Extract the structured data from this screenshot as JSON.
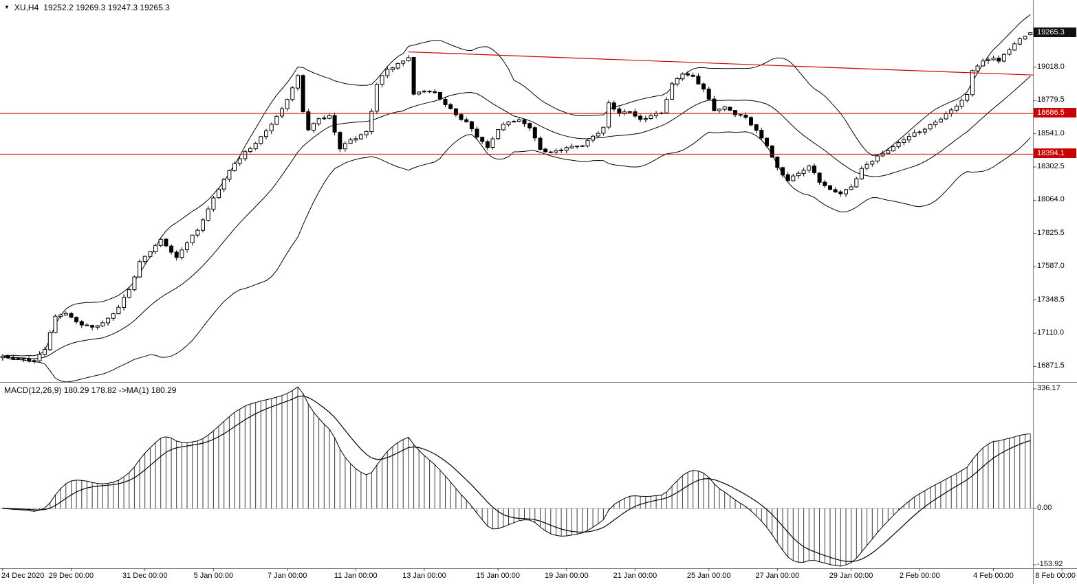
{
  "header": {
    "collapse_icon": "▼",
    "symbol_period": "XU,H4",
    "ohlc_text": "19252.2 19269.3 19247.3 19265.3"
  },
  "macd_label": "MACD(12,26,9) 180.29 178.82  ->MA(1) 180.29",
  "colors": {
    "bull": "#ffffff",
    "bear": "#000000",
    "line": "#000000",
    "red_line": "#cc0000",
    "flag_red_bg": "#cc0000",
    "flag_current_bg": "#111111",
    "separator": "#808080",
    "axis_text": "#000000",
    "background": "#ffffff"
  },
  "chart_data": {
    "type": "candlestick",
    "title": "XU,H4",
    "bars": 196,
    "seed": 20210208,
    "quote": {
      "open": 19252.2,
      "high": 19269.3,
      "low": 19247.3,
      "close": 19265.3
    },
    "price_axis": {
      "min": 16760,
      "max": 19500,
      "current": 19265.3,
      "ticks": [
        19018.0,
        18779.5,
        18541.0,
        18302.5,
        18064.0,
        17825.5,
        17587.0,
        17348.5,
        17110.0,
        16871.5
      ]
    },
    "hlines": [
      {
        "price": 18686.5,
        "color": "#cc0000"
      },
      {
        "price": 18394.1,
        "color": "#cc0000"
      }
    ],
    "trendline": {
      "i1": 77,
      "p1": 19128,
      "p2": 18962,
      "color": "#cc0000"
    },
    "bollinger": {
      "period": 20,
      "deviation": 2
    },
    "macd": {
      "fast": 12,
      "slow": 26,
      "signal": 9,
      "axis_ticks": [
        336.17,
        0.0,
        -153.92
      ]
    },
    "close_anchors": [
      [
        0,
        16940
      ],
      [
        6,
        16915
      ],
      [
        8,
        17000
      ],
      [
        10,
        17230
      ],
      [
        12,
        17260
      ],
      [
        14,
        17190
      ],
      [
        17,
        17150
      ],
      [
        20,
        17210
      ],
      [
        22,
        17300
      ],
      [
        24,
        17420
      ],
      [
        26,
        17620
      ],
      [
        28,
        17700
      ],
      [
        30,
        17780
      ],
      [
        33,
        17650
      ],
      [
        35,
        17760
      ],
      [
        37,
        17850
      ],
      [
        39,
        18000
      ],
      [
        41,
        18150
      ],
      [
        44,
        18330
      ],
      [
        47,
        18440
      ],
      [
        50,
        18560
      ],
      [
        53,
        18720
      ],
      [
        55,
        18870
      ],
      [
        56,
        18950
      ],
      [
        57,
        18700
      ],
      [
        58,
        18570
      ],
      [
        60,
        18650
      ],
      [
        62,
        18670
      ],
      [
        64,
        18440
      ],
      [
        66,
        18490
      ],
      [
        69,
        18550
      ],
      [
        70,
        18700
      ],
      [
        71,
        18900
      ],
      [
        73,
        19000
      ],
      [
        75,
        19040
      ],
      [
        77,
        19090
      ],
      [
        78,
        18820
      ],
      [
        80,
        18850
      ],
      [
        82,
        18830
      ],
      [
        84,
        18750
      ],
      [
        86,
        18680
      ],
      [
        88,
        18620
      ],
      [
        90,
        18520
      ],
      [
        92,
        18440
      ],
      [
        94,
        18570
      ],
      [
        96,
        18630
      ],
      [
        98,
        18640
      ],
      [
        100,
        18590
      ],
      [
        102,
        18430
      ],
      [
        104,
        18410
      ],
      [
        107,
        18440
      ],
      [
        110,
        18460
      ],
      [
        112,
        18520
      ],
      [
        114,
        18580
      ],
      [
        115,
        18760
      ],
      [
        117,
        18680
      ],
      [
        119,
        18700
      ],
      [
        121,
        18640
      ],
      [
        123,
        18670
      ],
      [
        125,
        18690
      ],
      [
        127,
        18900
      ],
      [
        129,
        18970
      ],
      [
        131,
        18950
      ],
      [
        133,
        18860
      ],
      [
        135,
        18710
      ],
      [
        137,
        18730
      ],
      [
        139,
        18680
      ],
      [
        141,
        18660
      ],
      [
        143,
        18560
      ],
      [
        145,
        18460
      ],
      [
        147,
        18290
      ],
      [
        149,
        18210
      ],
      [
        151,
        18260
      ],
      [
        153,
        18310
      ],
      [
        155,
        18200
      ],
      [
        157,
        18140
      ],
      [
        159,
        18110
      ],
      [
        161,
        18160
      ],
      [
        163,
        18290
      ],
      [
        165,
        18350
      ],
      [
        167,
        18400
      ],
      [
        169,
        18450
      ],
      [
        171,
        18500
      ],
      [
        173,
        18540
      ],
      [
        175,
        18580
      ],
      [
        177,
        18620
      ],
      [
        179,
        18680
      ],
      [
        181,
        18740
      ],
      [
        183,
        18820
      ],
      [
        184,
        19000
      ],
      [
        186,
        19060
      ],
      [
        188,
        19090
      ],
      [
        189,
        19060
      ],
      [
        191,
        19150
      ],
      [
        193,
        19220
      ],
      [
        195,
        19265.3
      ]
    ],
    "time_axis": [
      {
        "i": 0,
        "label": "24 Dec 2020"
      },
      {
        "i": 13,
        "label": "29 Dec 00:00"
      },
      {
        "i": 27,
        "label": "31 Dec 00:00"
      },
      {
        "i": 40,
        "label": "5 Jan 00:00"
      },
      {
        "i": 54,
        "label": "7 Jan 00:00"
      },
      {
        "i": 67,
        "label": "11 Jan 00:00"
      },
      {
        "i": 80,
        "label": "13 Jan 00:00"
      },
      {
        "i": 94,
        "label": "15 Jan 00:00"
      },
      {
        "i": 107,
        "label": "19 Jan 00:00"
      },
      {
        "i": 120,
        "label": "21 Jan 00:00"
      },
      {
        "i": 134,
        "label": "25 Jan 00:00"
      },
      {
        "i": 147,
        "label": "27 Jan 00:00"
      },
      {
        "i": 161,
        "label": "29 Jan 00:00"
      },
      {
        "i": 174,
        "label": "2 Feb 00:00"
      },
      {
        "i": 188,
        "label": "4 Feb 00:00"
      },
      {
        "i": 201,
        "label": "8 Feb 00:00"
      }
    ]
  }
}
